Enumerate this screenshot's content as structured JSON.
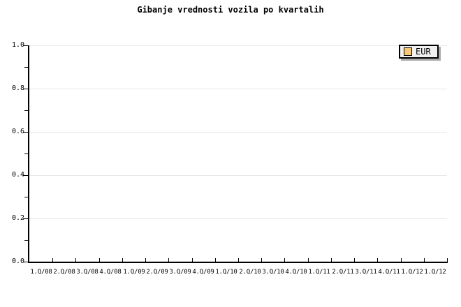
{
  "chart_data": {
    "type": "line",
    "title": "Gibanje vrednosti vozila po kvartalih",
    "categories": [
      "1.Q/08",
      "2.Q/08",
      "3.Q/08",
      "4.Q/08",
      "1.Q/09",
      "2.Q/09",
      "3.Q/09",
      "4.Q/09",
      "1.Q/10",
      "2.Q/10",
      "3.Q/10",
      "4.Q/10",
      "1.Q/11",
      "2.Q/11",
      "3.Q/11",
      "4.Q/11",
      "1.Q/12",
      "1.Q/12"
    ],
    "series": [
      {
        "name": "EUR",
        "color": "#f8c870",
        "values": []
      }
    ],
    "xlabel": "",
    "ylabel": "",
    "ylim": [
      0.0,
      1.0
    ],
    "ytick_values": [
      0.0,
      0.2,
      0.4,
      0.6,
      0.8,
      1.0
    ],
    "ytick_labels": [
      "0.0",
      "0.2",
      "0.4",
      "0.6",
      "0.8",
      "1.0"
    ],
    "yminor_values": [
      0.1,
      0.3,
      0.5,
      0.7,
      0.9
    ],
    "grid": "horizontal-major",
    "legend_position": "top-right",
    "plot_area_empty": true
  },
  "legend": {
    "label": "EUR",
    "swatch_color": "#f8c870"
  },
  "colors": {
    "background": "#ffffff",
    "axis": "#000000",
    "gridline": "#e8e8e8",
    "legend_background": "#f0f0f0",
    "legend_border": "#000000",
    "legend_shadow": "#aaaaaa",
    "series_eur": "#f8c870",
    "text": "#000000"
  }
}
